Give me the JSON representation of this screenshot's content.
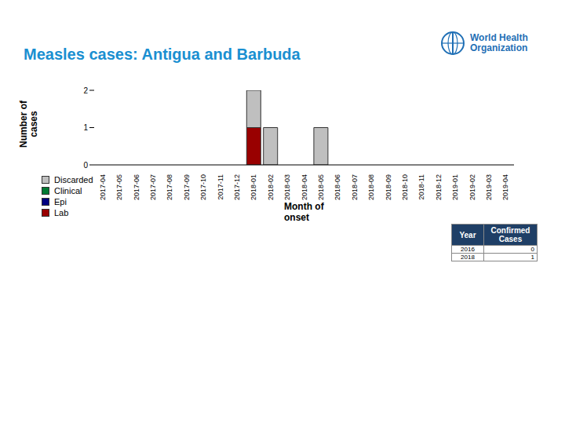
{
  "chart_data": {
    "type": "bar",
    "title": "Measles cases: Antigua and Barbuda",
    "x_label": "Month of onset",
    "y_label": "Number of cases",
    "categories": [
      "2017-04",
      "2017-05",
      "2017-06",
      "2017-07",
      "2017-08",
      "2017-09",
      "2017-10",
      "2017-11",
      "2017-12",
      "2018-01",
      "2018-02",
      "2018-03",
      "2018-04",
      "2018-05",
      "2018-06",
      "2018-07",
      "2018-08",
      "2018-09",
      "2018-10",
      "2018-11",
      "2018-12",
      "2019-01",
      "2019-02",
      "2019-03",
      "2019-04"
    ],
    "series": [
      {
        "name": "Discarded",
        "color": "#bfbfbf",
        "values": [
          0,
          0,
          0,
          0,
          0,
          0,
          0,
          0,
          0,
          1,
          1,
          0,
          0,
          1,
          0,
          0,
          0,
          0,
          0,
          0,
          0,
          0,
          0,
          0,
          0
        ]
      },
      {
        "name": "Clinical",
        "color": "#007a33",
        "values": [
          0,
          0,
          0,
          0,
          0,
          0,
          0,
          0,
          0,
          0,
          0,
          0,
          0,
          0,
          0,
          0,
          0,
          0,
          0,
          0,
          0,
          0,
          0,
          0,
          0
        ]
      },
      {
        "name": "Epi",
        "color": "#000080",
        "values": [
          0,
          0,
          0,
          0,
          0,
          0,
          0,
          0,
          0,
          0,
          0,
          0,
          0,
          0,
          0,
          0,
          0,
          0,
          0,
          0,
          0,
          0,
          0,
          0,
          0
        ]
      },
      {
        "name": "Lab",
        "color": "#990000",
        "values": [
          0,
          0,
          0,
          0,
          0,
          0,
          0,
          0,
          0,
          1,
          0,
          0,
          0,
          0,
          0,
          0,
          0,
          0,
          0,
          0,
          0,
          0,
          0,
          0,
          0
        ]
      }
    ],
    "stacked": true,
    "ylim": [
      0,
      2
    ],
    "yticks": [
      0,
      1,
      2
    ],
    "grid": false,
    "legend": "left"
  },
  "logo": {
    "text": "World Health Organization"
  },
  "table": {
    "header": [
      "Year",
      "Confirmed Cases"
    ],
    "rows": [
      [
        2016,
        0
      ],
      [
        2018,
        1
      ]
    ]
  }
}
